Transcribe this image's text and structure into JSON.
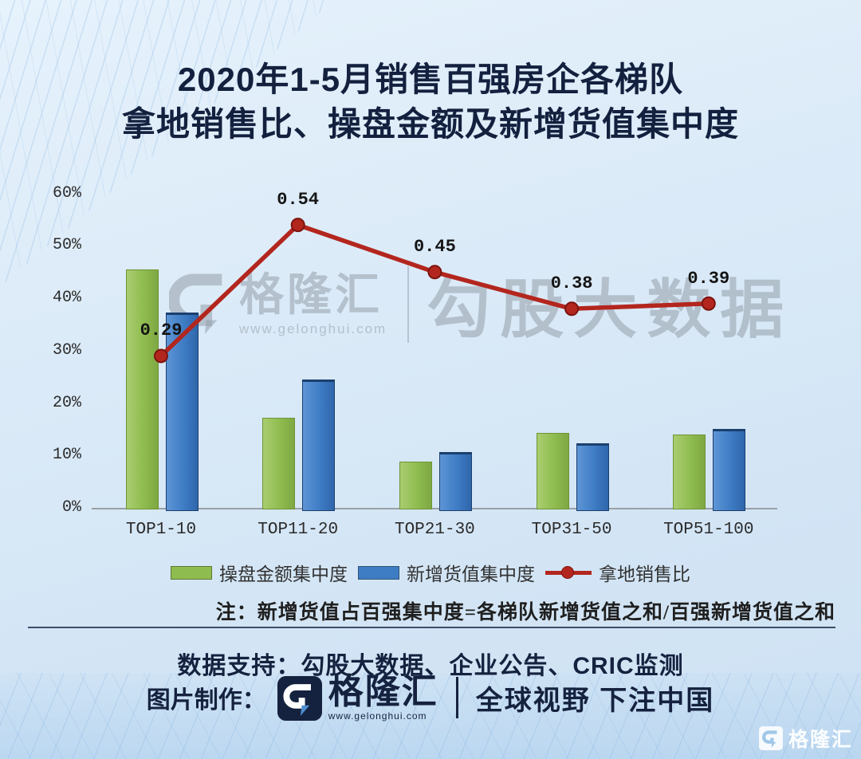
{
  "title": {
    "line1": "2020年1-5月销售百强房企各梯队",
    "line2": "拿地销售比、操盘金额及新增货值集中度"
  },
  "chart_data": {
    "type": "bar",
    "subtype": "grouped bars with overlaid line",
    "categories": [
      "TOP1-10",
      "TOP11-20",
      "TOP21-30",
      "TOP31-50",
      "TOP51-100"
    ],
    "series": [
      {
        "key": "bar_green",
        "name": "操盘金额集中度",
        "type": "bar",
        "color": "#8FBC4F",
        "values_pct": [
          45.5,
          17.2,
          8.8,
          14.3,
          14.0
        ]
      },
      {
        "key": "bar_blue",
        "name": "新增货值集中度",
        "type": "bar",
        "color": "#3E7CC4",
        "values_pct": [
          37.3,
          24.5,
          10.7,
          12.3,
          15.1
        ]
      },
      {
        "key": "line_red",
        "name": "拿地销售比",
        "type": "line",
        "color": "#B3261E",
        "values": [
          0.29,
          0.54,
          0.45,
          0.38,
          0.39
        ],
        "labels": [
          "0.29",
          "0.54",
          "0.45",
          "0.38",
          "0.39"
        ],
        "plot_scale": 100
      }
    ],
    "y_ticks": [
      "60%",
      "50%",
      "40%",
      "30%",
      "20%",
      "10%",
      "0%"
    ],
    "ylim": [
      0,
      60
    ],
    "grid": false,
    "legend_position": "bottom"
  },
  "note": "注：新增货值占百强集中度=各梯队新增货值之和/百强新增货值之和",
  "watermark": {
    "brand": "格隆汇",
    "url": "www.gelonghui.com",
    "right_text": "勾股大数据"
  },
  "footer": {
    "data_support": "数据支持：勾股大数据、企业公告、CRIC监测",
    "credit_label": "图片制作：",
    "brand": "格隆汇",
    "brand_url": "www.gelonghui.com",
    "slogan": "全球视野 下注中国"
  },
  "corner_logo": {
    "brand": "格隆汇"
  },
  "colors": {
    "green_bar": "#8FBC4F",
    "blue_bar": "#3E7CC4",
    "red_line": "#B3261E",
    "title_navy": "#13203E",
    "background": "#D7E8F7"
  }
}
